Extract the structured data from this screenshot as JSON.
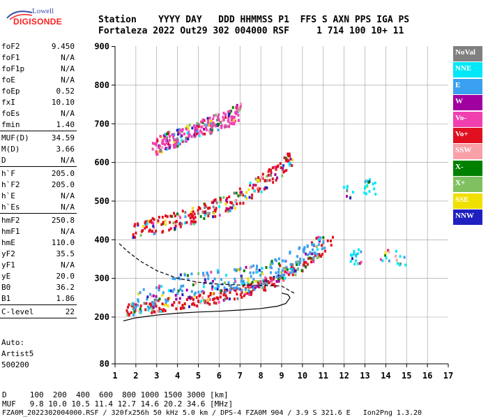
{
  "header": {
    "line1": "Station    YYYY DAY   DDD HHMMSS P1  FFS S AXN PPS IGA PS",
    "line2": "Fortaleza 2022 Out29 302 004000 RSF     1 714 100 10+ 11"
  },
  "logo": {
    "top": "Lowell",
    "bottom": "DIGISONDE"
  },
  "params": [
    {
      "k": "foF2",
      "v": "9.450"
    },
    {
      "k": "foF1",
      "v": "N/A"
    },
    {
      "k": "foF1p",
      "v": "N/A"
    },
    {
      "k": "foE",
      "v": "N/A"
    },
    {
      "k": "foEp",
      "v": "0.52"
    },
    {
      "k": "fxI",
      "v": "10.10"
    },
    {
      "k": "foEs",
      "v": "N/A"
    },
    {
      "k": "fmin",
      "v": "1.40"
    },
    {
      "k": "MUF(D)",
      "v": "34.59"
    },
    {
      "k": "M(D)",
      "v": "3.66"
    },
    {
      "k": "D",
      "v": "N/A"
    },
    {
      "k": "h`F",
      "v": "205.0"
    },
    {
      "k": "h`F2",
      "v": "205.0"
    },
    {
      "k": "h`E",
      "v": "N/A"
    },
    {
      "k": "h`Es",
      "v": "N/A"
    },
    {
      "k": "hmF2",
      "v": "250.8"
    },
    {
      "k": "hmF1",
      "v": "N/A"
    },
    {
      "k": "hmE",
      "v": "110.0"
    },
    {
      "k": "yF2",
      "v": "35.5"
    },
    {
      "k": "yF1",
      "v": "N/A"
    },
    {
      "k": "yE",
      "v": "20.0"
    },
    {
      "k": "B0",
      "v": "36.2"
    },
    {
      "k": "B1",
      "v": "1.86"
    },
    {
      "k": "C-level",
      "v": "22"
    }
  ],
  "auto": [
    "Auto:",
    "Artist5",
    "500200"
  ],
  "legend": [
    {
      "label": "NoVal",
      "color": "#808080"
    },
    {
      "label": "NNE",
      "color": "#00e8f8"
    },
    {
      "label": "E",
      "color": "#3aa0f0"
    },
    {
      "label": "W",
      "color": "#a000a0"
    },
    {
      "label": "Vo-",
      "color": "#f040b0"
    },
    {
      "label": "Vo+",
      "color": "#e01020"
    },
    {
      "label": "SSW",
      "color": "#f8a0a8"
    },
    {
      "label": "X-",
      "color": "#008000"
    },
    {
      "label": "X+",
      "color": "#80c060"
    },
    {
      "label": "SSE",
      "color": "#f0e000"
    },
    {
      "label": "NNW",
      "color": "#2020c0"
    }
  ],
  "footer": {
    "line1": "D     100  200  400  600  800 1000 1500 3000 [km]",
    "line2": "MUF   9.8 10.0 10.5 11.4 12.7 14.6 20.2 34.6 [MHz]",
    "line3": "FZA0M_2022302004000.RSF / 320fx256h 50 kHz 5.0 km / DPS-4 FZA0M 904 / 3.9 S 321.6 E   Ion2Png 1.3.20"
  },
  "chart_data": {
    "type": "scatter",
    "xlim": [
      1,
      17
    ],
    "ylim": [
      80,
      900
    ],
    "x_ticks": [
      1,
      2,
      3,
      4,
      5,
      6,
      7,
      8,
      9,
      10,
      11,
      12,
      13,
      14,
      15,
      16,
      17
    ],
    "y_ticks": [
      80,
      200,
      300,
      400,
      500,
      600,
      700,
      800,
      900
    ],
    "grid": true,
    "traces": [
      {
        "name": "ordinary-F-trace",
        "color": "#e01020",
        "x": [
          1.5,
          2.0,
          3.0,
          4.0,
          5.0,
          6.0,
          7.0,
          8.0,
          9.0,
          10.0,
          10.5,
          11.0,
          11.5
        ],
        "y": [
          215,
          218,
          225,
          232,
          240,
          250,
          262,
          278,
          300,
          330,
          350,
          375,
          400
        ]
      },
      {
        "name": "extraordinary-F-trace",
        "color": "#3aa0f0",
        "x": [
          1.8,
          3.0,
          4.0,
          5.0,
          6.0,
          7.0,
          8.0,
          9.0,
          10.0,
          11.0
        ],
        "y": [
          225,
          250,
          270,
          280,
          285,
          290,
          300,
          320,
          350,
          380
        ]
      },
      {
        "name": "second-hop-trace",
        "color": "#e01020",
        "x": [
          1.8,
          3.0,
          4.0,
          5.0,
          6.0,
          7.0,
          8.0,
          9.0,
          9.5
        ],
        "y": [
          420,
          430,
          445,
          460,
          480,
          505,
          540,
          580,
          610
        ]
      },
      {
        "name": "third-hop-trace",
        "color": "#f040b0",
        "x": [
          2.7,
          3.5,
          4.5,
          5.5,
          6.5,
          7.0
        ],
        "y": [
          630,
          650,
          670,
          690,
          710,
          730
        ]
      },
      {
        "name": "spread-echoes",
        "color": "#00e8f8",
        "x": [
          12.2,
          12.5,
          13.2,
          14.0,
          14.7
        ],
        "y": [
          525,
          360,
          540,
          360,
          355
        ]
      }
    ],
    "profile_solid": {
      "x": [
        1.4,
        2.0,
        3.0,
        4.0,
        5.0,
        6.0,
        7.0,
        8.0,
        8.8,
        9.2,
        9.4,
        9.3,
        9.0
      ],
      "y": [
        190,
        198,
        205,
        210,
        213,
        215,
        218,
        222,
        228,
        235,
        250,
        258,
        262
      ]
    },
    "profile_dashed": {
      "x": [
        1.2,
        1.6,
        2.2,
        3.0,
        4.0,
        5.0,
        6.0,
        7.0,
        8.0,
        9.0,
        9.6
      ],
      "y": [
        390,
        370,
        345,
        320,
        300,
        290,
        285,
        283,
        282,
        280,
        262
      ]
    }
  }
}
